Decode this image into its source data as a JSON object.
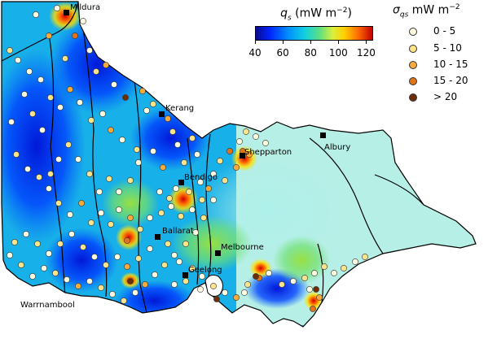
{
  "colorbar": {
    "title_symbol": "q",
    "title_sub": "s",
    "title_units": "(mW m",
    "title_exp": "−2",
    "title_close": ")",
    "ticks": [
      "40",
      "60",
      "80",
      "100",
      "120"
    ],
    "tick_values": [
      40,
      60,
      80,
      100,
      120
    ],
    "range": [
      40,
      125
    ],
    "colors": [
      "#0a0a8c",
      "#0024ff",
      "#0090ff",
      "#10d0e0",
      "#60e080",
      "#d8f040",
      "#ffd000",
      "#ff6a00",
      "#c00000"
    ]
  },
  "legend": {
    "title_symbol": "σ",
    "title_sub": "qs",
    "title_units": "mW m",
    "title_exp": "−2",
    "items": [
      {
        "label": "0 - 5",
        "color": "#fffbe0"
      },
      {
        "label": "5 - 10",
        "color": "#fde38a"
      },
      {
        "label": "10 - 15",
        "color": "#f7a93a"
      },
      {
        "label": "15 - 20",
        "color": "#e1731a"
      },
      {
        "label": "> 20",
        "color": "#6b2e06"
      }
    ]
  },
  "cities": [
    {
      "name": "Mildura"
    },
    {
      "name": "Kerang"
    },
    {
      "name": "Shepparton"
    },
    {
      "name": "Albury"
    },
    {
      "name": "Bendigo"
    },
    {
      "name": "Ballarat"
    },
    {
      "name": "Melbourne"
    },
    {
      "name": "Geelong"
    },
    {
      "name": "Warrnambool"
    }
  ]
}
